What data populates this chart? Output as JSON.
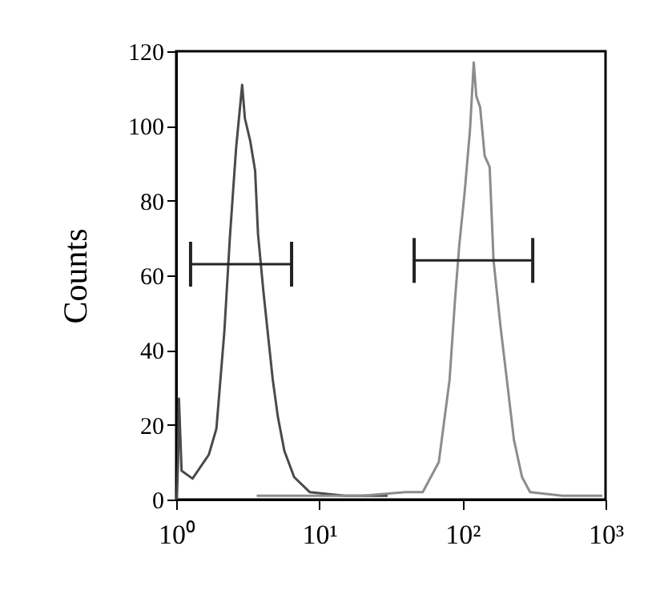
{
  "chart_data": {
    "type": "line",
    "ylabel": "Counts",
    "xlim": [
      1,
      1000
    ],
    "xticks": [
      {
        "value": 1,
        "label": "10⁰"
      },
      {
        "value": 10,
        "label": "10¹"
      },
      {
        "value": 100,
        "label": "10²"
      },
      {
        "value": 1000,
        "label": "10³"
      }
    ],
    "ylim": [
      0,
      120
    ],
    "yticks": [
      0,
      20,
      40,
      60,
      80,
      100,
      120
    ],
    "log": "x",
    "grid": false,
    "marker": "none",
    "series": [
      {
        "color": "#4a4a4a",
        "x": [
          1.01,
          1.03,
          1.045,
          1.09,
          1.3,
          1.69,
          1.91,
          2.17,
          2.37,
          2.62,
          2.89,
          3.02,
          3.29,
          3.56,
          3.73,
          4.06,
          4.41,
          4.73,
          5.14,
          5.7,
          6.67,
          8.56,
          15,
          30
        ],
        "values": [
          0,
          10,
          27,
          7.7,
          5.6,
          12,
          19,
          45,
          70,
          94,
          111,
          102,
          96,
          88,
          71,
          56,
          43,
          32,
          22,
          13,
          6,
          2,
          1,
          1
        ]
      },
      {
        "color": "#8c8c8c",
        "x": [
          3.65,
          20,
          40,
          52.8,
          68.4,
          81.3,
          88.6,
          95,
          103.5,
          113,
          120,
          125,
          133,
          143,
          155,
          165,
          185,
          206,
          229,
          261,
          297,
          500,
          950
        ],
        "values": [
          1,
          1,
          2,
          2,
          10,
          32,
          53,
          68,
          82,
          99,
          117,
          108,
          105,
          92,
          89,
          64,
          46,
          31,
          16,
          6,
          2,
          1,
          1
        ]
      },
      {
        "color": "#222222",
        "x": [
          1.26,
          6.4
        ],
        "values": [
          63,
          63
        ],
        "errors": [
          6,
          6
        ]
      },
      {
        "color": "#222222",
        "x": [
          46,
          310
        ],
        "values": [
          64,
          64
        ],
        "errors": [
          6,
          6
        ]
      }
    ]
  }
}
